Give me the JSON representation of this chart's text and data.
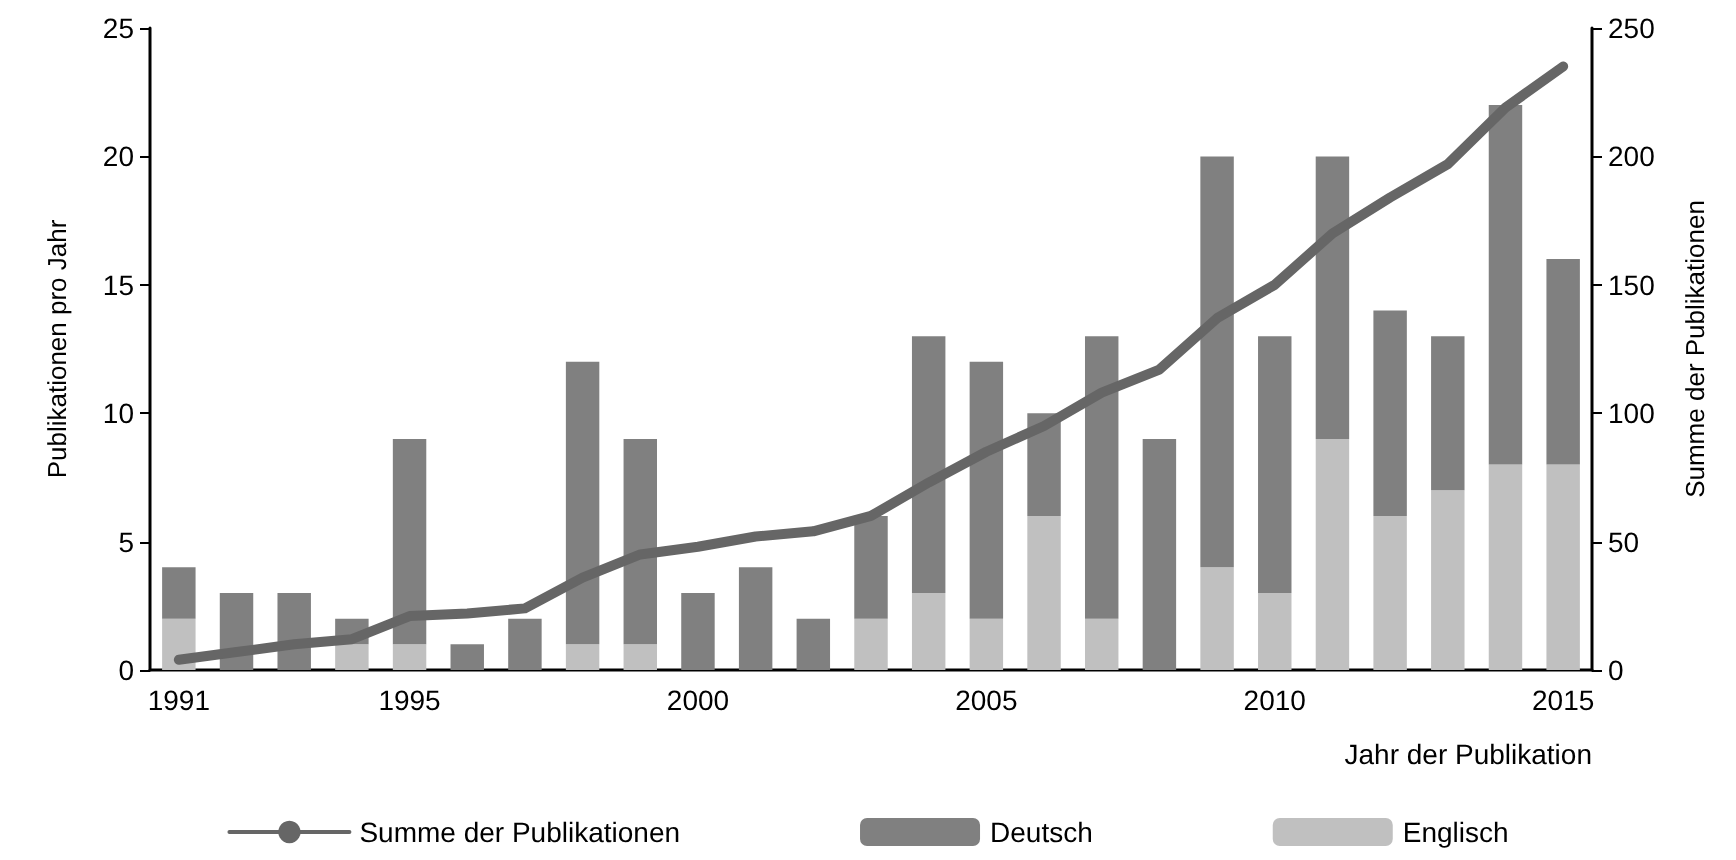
{
  "chart_data": {
    "type": "bar",
    "stacked": true,
    "xlabel": "Jahr der Publikation",
    "ylabel": "Publikationen pro Jahr",
    "y2label": "Summe der Publikationen",
    "categories": [
      "1991",
      null,
      null,
      null,
      "1995",
      null,
      null,
      null,
      null,
      "2000",
      null,
      null,
      null,
      null,
      "2005",
      null,
      null,
      null,
      null,
      "2010",
      null,
      null,
      null,
      null,
      "2015"
    ],
    "series": [
      {
        "name": "Summe der Publikationen",
        "type": "line",
        "axis": "y2",
        "color": "#666666",
        "values": [
          4,
          7,
          10,
          12,
          21,
          22,
          24,
          36,
          45,
          48,
          52,
          54,
          60,
          73,
          85,
          95,
          108,
          117,
          137,
          150,
          170,
          184,
          197,
          219,
          235
        ]
      },
      {
        "name": "Englisch",
        "color": "#c0c0c0",
        "values": [
          2,
          0,
          0,
          1,
          1,
          0,
          0,
          1,
          1,
          0,
          0,
          0,
          2,
          3,
          2,
          6,
          2,
          0,
          4,
          3,
          9,
          6,
          7,
          8,
          8
        ]
      },
      {
        "name": "Deutsch",
        "color": "#808080",
        "values": [
          2,
          3,
          3,
          1,
          8,
          1,
          2,
          11,
          8,
          3,
          4,
          2,
          4,
          10,
          10,
          4,
          11,
          9,
          16,
          10,
          11,
          8,
          6,
          14,
          8
        ]
      }
    ],
    "ylim": [
      0,
      25
    ],
    "yticks": [
      0,
      5,
      10,
      15,
      20,
      25
    ],
    "y2lim": [
      0,
      250
    ],
    "y2ticks": [
      0,
      50,
      100,
      150,
      200,
      250
    ],
    "grid": false,
    "legend": "bottom",
    "marker": "none",
    "line_style": "solid"
  }
}
